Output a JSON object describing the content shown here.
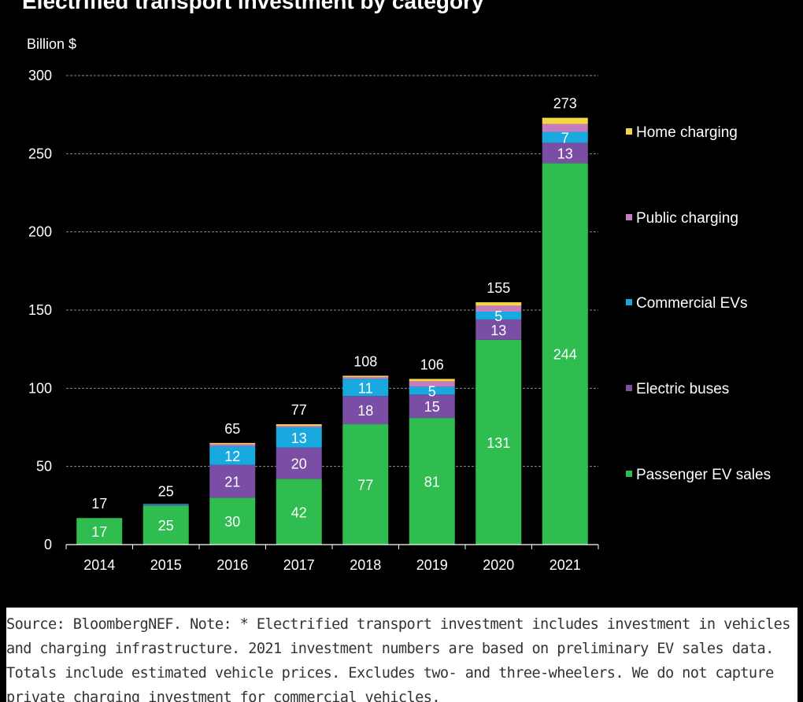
{
  "chart_data": {
    "type": "bar",
    "stacked": true,
    "title": "Electrified transport investment by category",
    "ylabel": "Billion $",
    "xlabel": "",
    "ylim": [
      0,
      300
    ],
    "yticks": [
      "0",
      "50",
      "100",
      "150",
      "200",
      "250",
      "300"
    ],
    "grid": true,
    "legend_position": "right",
    "categories": [
      "2014",
      "2015",
      "2016",
      "2017",
      "2018",
      "2019",
      "2020",
      "2021"
    ],
    "totals": [
      17,
      25,
      65,
      77,
      108,
      106,
      155,
      273
    ],
    "total_labels": [
      "17",
      "25",
      "65",
      "77",
      "108",
      "106",
      "155",
      "273"
    ],
    "series": [
      {
        "name": "Passenger EV sales",
        "color": "#2ebd4e",
        "values": [
          17,
          25,
          30,
          42,
          77,
          81,
          131,
          244
        ],
        "labels": [
          "17",
          "25",
          "30",
          "42",
          "77",
          "81",
          "131",
          "244"
        ]
      },
      {
        "name": "Electric buses",
        "color": "#7a4ea4",
        "values": [
          0,
          0.5,
          21,
          20,
          18,
          15,
          13,
          13
        ],
        "labels": [
          "",
          "",
          "21",
          "20",
          "18",
          "15",
          "13",
          "13"
        ]
      },
      {
        "name": "Commercial EVs",
        "color": "#18aadf",
        "values": [
          0,
          0.5,
          12,
          13,
          11,
          5,
          5,
          7
        ],
        "labels": [
          "",
          "",
          "12",
          "13",
          "11",
          "5",
          "5",
          "7"
        ]
      },
      {
        "name": "Public charging",
        "color": "#c87cc0",
        "values": [
          0,
          0,
          1.2,
          1,
          1.2,
          3.5,
          3.8,
          5
        ],
        "labels": [
          "",
          "",
          "",
          "",
          "",
          "",
          "",
          ""
        ]
      },
      {
        "name": "Home charging",
        "color": "#f2d643",
        "values": [
          0,
          0,
          0.8,
          1,
          0.8,
          1.5,
          2.2,
          4
        ],
        "labels": [
          "",
          "",
          "",
          "",
          "",
          "",
          "",
          ""
        ]
      }
    ],
    "legend_order": [
      "Home charging",
      "Public charging",
      "Commercial EVs",
      "Electric buses",
      "Passenger EV sales"
    ]
  },
  "footnote": "Source: BloombergNEF. Note: * Electrified transport investment includes investment in vehicles and charging infrastructure. 2021 investment numbers are based on preliminary EV sales data. Totals include estimated vehicle prices. Excludes two- and three-wheelers. We do not capture private charging investment for commercial vehicles."
}
